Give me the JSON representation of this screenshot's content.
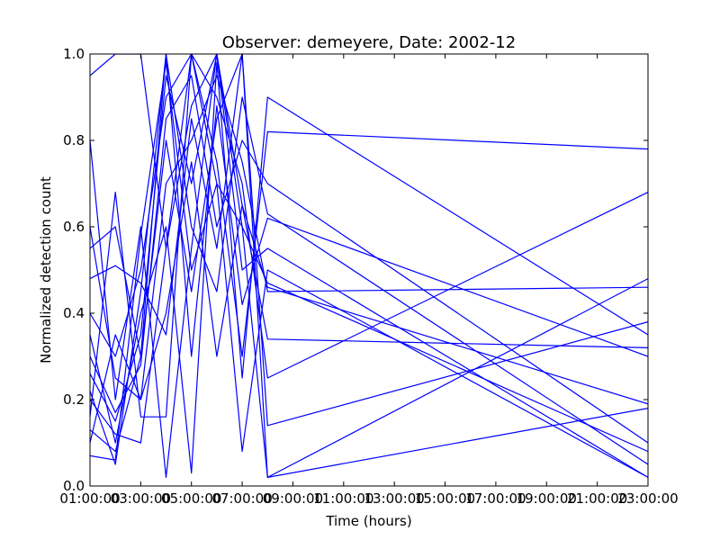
{
  "chart_data": {
    "type": "line",
    "title": "Observer: demeyere, Date: 2002-12",
    "xlabel": "Time (hours)",
    "ylabel": "Normalized detection count",
    "xlim": [
      1,
      23
    ],
    "ylim": [
      0,
      1
    ],
    "x_ticks": [
      {
        "value": 1,
        "label": "01:00:00"
      },
      {
        "value": 3,
        "label": "03:00:00"
      },
      {
        "value": 5,
        "label": "05:00:00"
      },
      {
        "value": 7,
        "label": "07:00:00"
      },
      {
        "value": 9,
        "label": "09:00:00"
      },
      {
        "value": 11,
        "label": "11:00:00"
      },
      {
        "value": 13,
        "label": "13:00:00"
      },
      {
        "value": 15,
        "label": "15:00:00"
      },
      {
        "value": 17,
        "label": "17:00:00"
      },
      {
        "value": 19,
        "label": "19:00:00"
      },
      {
        "value": 21,
        "label": "21:00:00"
      },
      {
        "value": 23,
        "label": "23:00:00"
      }
    ],
    "y_ticks": [
      {
        "value": 0,
        "label": "0.0"
      },
      {
        "value": 0.2,
        "label": "0.2"
      },
      {
        "value": 0.4,
        "label": "0.4"
      },
      {
        "value": 0.6,
        "label": "0.6"
      },
      {
        "value": 0.8,
        "label": "0.8"
      },
      {
        "value": 1,
        "label": "1.0"
      }
    ],
    "grid": false,
    "legend": "none",
    "line_color": "#0000ff",
    "series": [
      {
        "x": [
          1.0,
          2.0,
          3.0,
          4.0,
          5.0,
          6.0,
          7.0,
          8.0,
          23.0
        ],
        "y": [
          0.95,
          1.0,
          1.0,
          0.55,
          1.0,
          0.9,
          0.7,
          0.25,
          0.68
        ]
      },
      {
        "x": [
          1.0,
          2.0,
          3.0,
          4.0,
          5.0,
          6.0,
          7.0,
          8.0,
          23.0
        ],
        "y": [
          0.55,
          0.6,
          0.3,
          1.0,
          0.6,
          0.45,
          0.9,
          0.63,
          0.05
        ]
      },
      {
        "x": [
          1.0,
          2.0,
          3.0,
          4.0,
          5.0,
          6.0,
          7.0,
          8.0,
          23.0
        ],
        "y": [
          0.4,
          0.3,
          0.5,
          0.9,
          1.0,
          0.7,
          0.6,
          0.47,
          0.08
        ]
      },
      {
        "x": [
          1.0,
          2.0,
          3.0,
          4.0,
          5.0,
          6.0,
          7.0,
          8.0,
          23.0
        ],
        "y": [
          0.26,
          0.15,
          0.35,
          0.95,
          0.7,
          1.0,
          0.5,
          0.55,
          0.02
        ]
      },
      {
        "x": [
          1.0,
          2.0,
          3.0,
          4.0,
          5.0,
          6.0,
          7.0,
          8.0,
          23.0
        ],
        "y": [
          0.1,
          0.35,
          0.2,
          0.7,
          0.8,
          0.95,
          0.75,
          0.45,
          0.46
        ]
      },
      {
        "x": [
          1.0,
          2.0,
          3.0,
          4.0,
          5.0,
          6.0,
          7.0,
          8.0,
          23.0
        ],
        "y": [
          0.22,
          0.05,
          0.45,
          1.0,
          0.3,
          0.88,
          0.42,
          0.62,
          0.3
        ]
      },
      {
        "x": [
          1.0,
          2.0,
          3.0,
          4.0,
          5.0,
          6.0,
          7.0,
          8.0,
          23.0
        ],
        "y": [
          0.3,
          0.17,
          0.28,
          0.85,
          0.95,
          0.6,
          0.8,
          0.7,
          0.1
        ]
      },
      {
        "x": [
          1.0,
          2.0,
          3.0,
          4.0,
          5.0,
          6.0,
          7.0,
          8.0,
          23.0
        ],
        "y": [
          0.8,
          0.2,
          0.6,
          0.02,
          0.55,
          1.0,
          0.65,
          0.34,
          0.32
        ]
      },
      {
        "x": [
          1.0,
          2.0,
          3.0,
          4.0,
          5.0,
          6.0,
          7.0,
          8.0,
          23.0
        ],
        "y": [
          0.16,
          0.68,
          0.16,
          0.16,
          1.0,
          0.75,
          0.3,
          0.82,
          0.78
        ]
      },
      {
        "x": [
          1.0,
          2.0,
          3.0,
          4.0,
          5.0,
          6.0,
          7.0,
          8.0,
          23.0
        ],
        "y": [
          0.35,
          0.1,
          0.4,
          0.6,
          0.03,
          0.98,
          0.25,
          0.9,
          0.35
        ]
      },
      {
        "x": [
          1.0,
          2.0,
          3.0,
          4.0,
          5.0,
          6.0,
          7.0,
          8.0,
          23.0
        ],
        "y": [
          0.48,
          0.51,
          0.47,
          0.35,
          0.85,
          0.55,
          1.0,
          0.02,
          0.48
        ]
      },
      {
        "x": [
          1.0,
          2.0,
          3.0,
          4.0,
          5.0,
          6.0,
          7.0,
          8.0,
          23.0
        ],
        "y": [
          0.07,
          0.06,
          0.58,
          0.98,
          0.5,
          0.7,
          0.08,
          0.5,
          0.02
        ]
      },
      {
        "x": [
          1.0,
          2.0,
          3.0,
          4.0,
          5.0,
          6.0,
          7.0,
          8.0,
          23.0
        ],
        "y": [
          0.2,
          0.12,
          0.1,
          0.55,
          0.88,
          1.0,
          0.6,
          0.02,
          0.18
        ]
      },
      {
        "x": [
          1.0,
          2.0,
          3.0,
          4.0,
          5.0,
          6.0,
          7.0,
          8.0,
          23.0
        ],
        "y": [
          0.6,
          0.25,
          0.2,
          0.4,
          0.75,
          0.3,
          0.65,
          0.46,
          0.19
        ]
      },
      {
        "x": [
          1.0,
          2.0,
          3.0,
          4.0,
          5.0,
          6.0,
          7.0,
          8.0,
          23.0
        ],
        "y": [
          0.13,
          0.08,
          0.3,
          0.8,
          0.45,
          0.85,
          1.0,
          0.14,
          0.38
        ]
      }
    ]
  }
}
